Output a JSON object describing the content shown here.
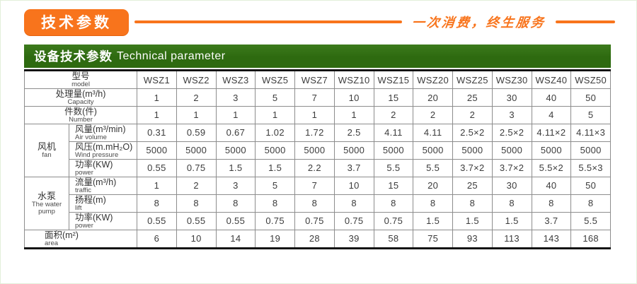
{
  "top": {
    "badge": "技术参数",
    "slogan": "一次消费，终生服务"
  },
  "header": {
    "title_zh": "设备技术参数",
    "title_en": "Technical parameter"
  },
  "colors": {
    "accent_orange": "#f8741c",
    "header_green": "#2e6a10"
  },
  "table": {
    "models": [
      "WSZ1",
      "WSZ2",
      "WSZ3",
      "WSZ5",
      "WSZ7",
      "WSZ10",
      "WSZ15",
      "WSZ20",
      "WSZ25",
      "WSZ30",
      "WSZ40",
      "WSZ50"
    ],
    "rows": [
      {
        "kind": "plain",
        "zh": "型号",
        "en": "model",
        "align": "center",
        "values": [
          "WSZ1",
          "WSZ2",
          "WSZ3",
          "WSZ5",
          "WSZ7",
          "WSZ10",
          "WSZ15",
          "WSZ20",
          "WSZ25",
          "WSZ30",
          "WSZ40",
          "WSZ50"
        ]
      },
      {
        "kind": "plain",
        "zh": "处理量(m³/h)",
        "en": "Capacity",
        "align": "center",
        "values": [
          "1",
          "2",
          "3",
          "5",
          "7",
          "10",
          "15",
          "20",
          "25",
          "30",
          "40",
          "50"
        ]
      },
      {
        "kind": "plain",
        "zh": "件数(件)",
        "en": "Number",
        "align": "center",
        "values": [
          "1",
          "1",
          "1",
          "1",
          "1",
          "1",
          "2",
          "2",
          "2",
          "3",
          "4",
          "5"
        ]
      },
      {
        "kind": "sub",
        "group": {
          "zh": "风机",
          "en": "fan",
          "span": 3
        },
        "zh": "风量(m³/min)",
        "en": "Air volume",
        "values": [
          "0.31",
          "0.59",
          "0.67",
          "1.02",
          "1.72",
          "2.5",
          "4.11",
          "4.11",
          "2.5×2",
          "2.5×2",
          "4.11×2",
          "4.11×3"
        ]
      },
      {
        "kind": "sub",
        "zh": "风压(m.mH₂O)",
        "en": "Wind pressure",
        "values": [
          "5000",
          "5000",
          "5000",
          "5000",
          "5000",
          "5000",
          "5000",
          "5000",
          "5000",
          "5000",
          "5000",
          "5000"
        ]
      },
      {
        "kind": "sub",
        "zh": "功率(KW)",
        "en": "power",
        "values": [
          "0.55",
          "0.75",
          "1.5",
          "1.5",
          "2.2",
          "3.7",
          "5.5",
          "5.5",
          "3.7×2",
          "3.7×2",
          "5.5×2",
          "5.5×3"
        ]
      },
      {
        "kind": "sub",
        "group": {
          "zh": "水泵",
          "en": "The water pump",
          "span": 3
        },
        "zh": "流量(m³/h)",
        "en": "traffic",
        "values": [
          "1",
          "2",
          "3",
          "5",
          "7",
          "10",
          "15",
          "20",
          "25",
          "30",
          "40",
          "50"
        ]
      },
      {
        "kind": "sub",
        "zh": "扬程(m)",
        "en": "lift",
        "values": [
          "8",
          "8",
          "8",
          "8",
          "8",
          "8",
          "8",
          "8",
          "8",
          "8",
          "8",
          "8"
        ]
      },
      {
        "kind": "sub",
        "zh": "功率(KW)",
        "en": "power",
        "values": [
          "0.55",
          "0.55",
          "0.55",
          "0.75",
          "0.75",
          "0.75",
          "0.75",
          "1.5",
          "1.5",
          "1.5",
          "3.7",
          "5.5"
        ]
      },
      {
        "kind": "plain",
        "zh": "面积(m²)",
        "en": "area",
        "align": "left",
        "values": [
          "6",
          "10",
          "14",
          "19",
          "28",
          "39",
          "58",
          "75",
          "93",
          "113",
          "143",
          "168"
        ]
      }
    ]
  }
}
